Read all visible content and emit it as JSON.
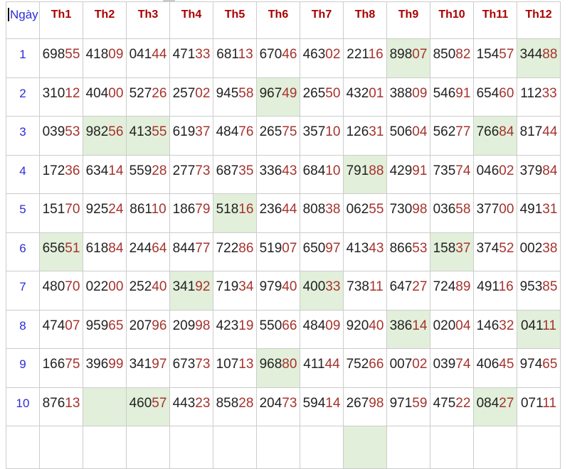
{
  "table": {
    "day_header": "Ngày",
    "month_headers": [
      "Th1",
      "Th2",
      "Th3",
      "Th4",
      "Th5",
      "Th6",
      "Th7",
      "Th8",
      "Th9",
      "Th10",
      "Th11",
      "Th12"
    ],
    "rows": [
      {
        "day": "1",
        "cells": [
          "69855",
          "41809",
          "04144",
          "47133",
          "68113",
          "67046",
          "46302",
          "22116",
          "89807",
          "85082",
          "15457",
          "34488"
        ],
        "highlights": [
          8,
          11
        ]
      },
      {
        "day": "2",
        "cells": [
          "31012",
          "40400",
          "52726",
          "25702",
          "94558",
          "96749",
          "26550",
          "43201",
          "38809",
          "54691",
          "65460",
          "11233"
        ],
        "highlights": [
          5
        ]
      },
      {
        "day": "3",
        "cells": [
          "03953",
          "98256",
          "41355",
          "61937",
          "48476",
          "26575",
          "35710",
          "12631",
          "50604",
          "56277",
          "76684",
          "81744"
        ],
        "highlights": [
          1,
          2,
          10
        ]
      },
      {
        "day": "4",
        "cells": [
          "17236",
          "63414",
          "55928",
          "27773",
          "68735",
          "33643",
          "68410",
          "79188",
          "42991",
          "73574",
          "04602",
          "37984"
        ],
        "highlights": [
          7
        ]
      },
      {
        "day": "5",
        "cells": [
          "15170",
          "92524",
          "86110",
          "18679",
          "51816",
          "23644",
          "80838",
          "06255",
          "73098",
          "03658",
          "37700",
          "49131"
        ],
        "highlights": [
          4
        ]
      },
      {
        "day": "6",
        "cells": [
          "65651",
          "61884",
          "24464",
          "84477",
          "72286",
          "51907",
          "65097",
          "41343",
          "86653",
          "15837",
          "37452",
          "00238"
        ],
        "highlights": [
          0,
          9
        ]
      },
      {
        "day": "7",
        "cells": [
          "48070",
          "02200",
          "25240",
          "34192",
          "71934",
          "97940",
          "40033",
          "73811",
          "64727",
          "72489",
          "49116",
          "95385"
        ],
        "highlights": [
          3,
          6
        ]
      },
      {
        "day": "8",
        "cells": [
          "47407",
          "95965",
          "20796",
          "20998",
          "42319",
          "55066",
          "48409",
          "92040",
          "38614",
          "02004",
          "14632",
          "04111"
        ],
        "highlights": [
          8,
          11
        ]
      },
      {
        "day": "9",
        "cells": [
          "16675",
          "39699",
          "34197",
          "67373",
          "10713",
          "96880",
          "41144",
          "75266",
          "00702",
          "03974",
          "40645",
          "97465"
        ],
        "highlights": [
          5
        ]
      },
      {
        "day": "10",
        "cells": [
          "87613",
          "",
          "46057",
          "44323",
          "85828",
          "20473",
          "59414",
          "26798",
          "97159",
          "47522",
          "08427",
          "07111"
        ],
        "highlights": [
          1,
          2,
          10
        ]
      }
    ],
    "partial_row": {
      "day": "",
      "cells": [
        "",
        "",
        "",
        "",
        "",
        "",
        "",
        "",
        "",
        "",
        "",
        ""
      ],
      "highlights": [
        7
      ]
    }
  },
  "colors": {
    "header_red": "#aa0000",
    "digit_dark": "#222222",
    "digit_red": "#a6332e",
    "day_blue": "#2c2cdb",
    "highlight_green": "#e2efda",
    "border_gray": "#cccccc"
  }
}
